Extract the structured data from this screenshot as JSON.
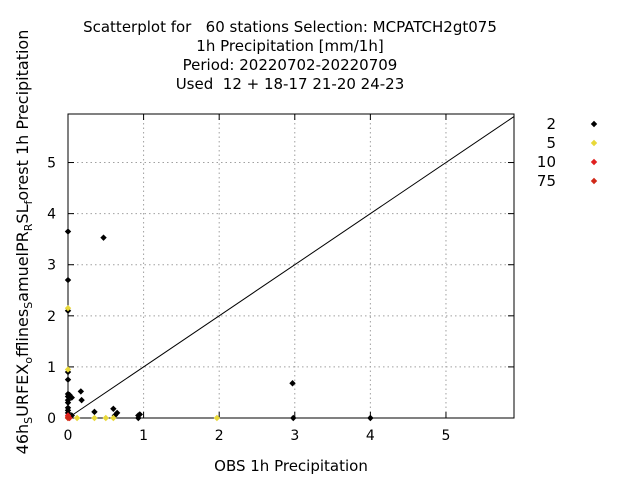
{
  "chart_data": {
    "type": "scatter",
    "title_lines": [
      "Scatterplot for   60 stations Selection: MCPATCH2gt075",
      "1h Precipitation [mm/1h]",
      "Period: 20220702-20220709",
      "Used  12 + 18-17 21-20 24-23"
    ],
    "xlabel": "OBS 1h Precipitation",
    "ylabel_parts": [
      "46h",
      "S",
      "URFEX",
      "o",
      "fflines",
      "S",
      "amuelPR",
      "R",
      "SL",
      "f",
      "orest 1h Precipitation"
    ],
    "xlim": [
      0,
      5.9
    ],
    "ylim": [
      0,
      5.95
    ],
    "xticks": [
      "0",
      "1",
      "2",
      "3",
      "4",
      "5"
    ],
    "yticks": [
      "0",
      "1",
      "2",
      "3",
      "4",
      "5"
    ],
    "grid": true,
    "diagonal": true,
    "legend_position": "right",
    "series": [
      {
        "name": "2",
        "color": "#000000",
        "points": [
          [
            0,
            3.65
          ],
          [
            0,
            2.7
          ],
          [
            0,
            2.1
          ],
          [
            0,
            0.9
          ],
          [
            0,
            0.75
          ],
          [
            0,
            0.47
          ],
          [
            0,
            0.42
          ],
          [
            0,
            0.35
          ],
          [
            0,
            0.3
          ],
          [
            0,
            0.2
          ],
          [
            0,
            0.15
          ],
          [
            0,
            0.1
          ],
          [
            0.02,
            0.45
          ],
          [
            0.05,
            0.4
          ],
          [
            0.05,
            0.05
          ],
          [
            0.17,
            0.52
          ],
          [
            0.18,
            0.35
          ],
          [
            0.35,
            0.12
          ],
          [
            0.47,
            3.53
          ],
          [
            0.6,
            0.18
          ],
          [
            0.62,
            0.05
          ],
          [
            0.65,
            0.1
          ],
          [
            0.93,
            0.05
          ],
          [
            0.93,
            0.0
          ],
          [
            0.95,
            0.07
          ],
          [
            2.97,
            0.68
          ],
          [
            2.98,
            0.0
          ],
          [
            4.0,
            0.0
          ]
        ]
      },
      {
        "name": "5",
        "color": "#e8d838",
        "points": [
          [
            0,
            2.15
          ],
          [
            0,
            0.95
          ],
          [
            0,
            0.0
          ],
          [
            0.12,
            0.0
          ],
          [
            0.35,
            0.0
          ],
          [
            0.5,
            0.0
          ],
          [
            0.6,
            0.0
          ],
          [
            1.97,
            0.0
          ]
        ]
      },
      {
        "name": "10",
        "color": "#e02020",
        "points": [
          [
            0,
            0.05
          ],
          [
            0,
            0.02
          ],
          [
            0.02,
            0.0
          ]
        ]
      },
      {
        "name": "75",
        "color": "#d02818",
        "points": [
          [
            0,
            0.0
          ]
        ]
      }
    ]
  }
}
